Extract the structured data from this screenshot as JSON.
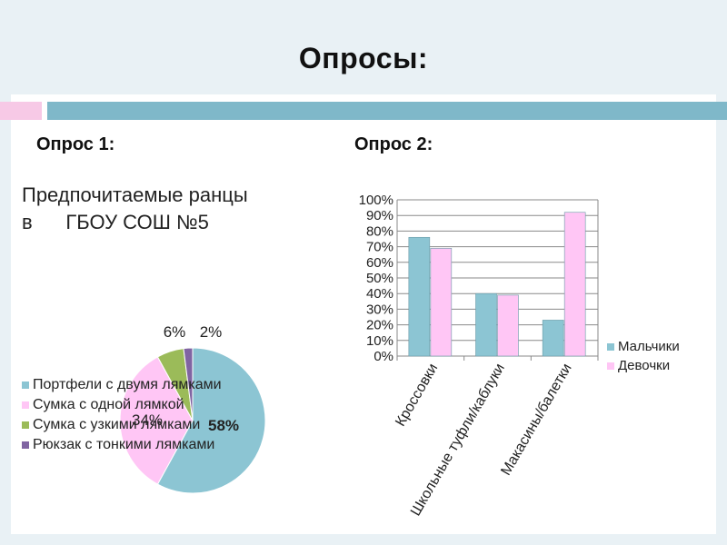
{
  "slide": {
    "title": "Опросы:",
    "survey1_label": "Опрос 1:",
    "survey2_label": "Опрос 2:"
  },
  "chart_data": [
    {
      "type": "pie",
      "title": "Предпочитаемые ранцы\nв      ГБОУ СОШ №5",
      "categories": [
        "Портфели с двумя лямками",
        "Сумка с одной лямкой",
        "Сумка с узкими лямками",
        "Рюкзак с тонкими лямками"
      ],
      "values": [
        58,
        34,
        6,
        2
      ],
      "data_labels": [
        "58%",
        "34%",
        "6%",
        "2%"
      ],
      "colors": [
        "#8cc5d3",
        "#ffc6f5",
        "#9bbb59",
        "#8064a2"
      ],
      "legend": "bottom-left"
    },
    {
      "type": "bar",
      "categories": [
        "Кроссовки",
        "Школьные туфли/каблуки",
        "Макасины/балетки"
      ],
      "series": [
        {
          "name": "Мальчики",
          "values": [
            76,
            40,
            23
          ],
          "color": "#8cc5d3"
        },
        {
          "name": "Девочки",
          "values": [
            69,
            39,
            92
          ],
          "color": "#ffc6f5"
        }
      ],
      "yticks": [
        "0%",
        "10%",
        "20%",
        "30%",
        "40%",
        "50%",
        "60%",
        "70%",
        "80%",
        "90%",
        "100%"
      ],
      "ylim": [
        0,
        100
      ],
      "grid": true,
      "legend": "right"
    }
  ]
}
